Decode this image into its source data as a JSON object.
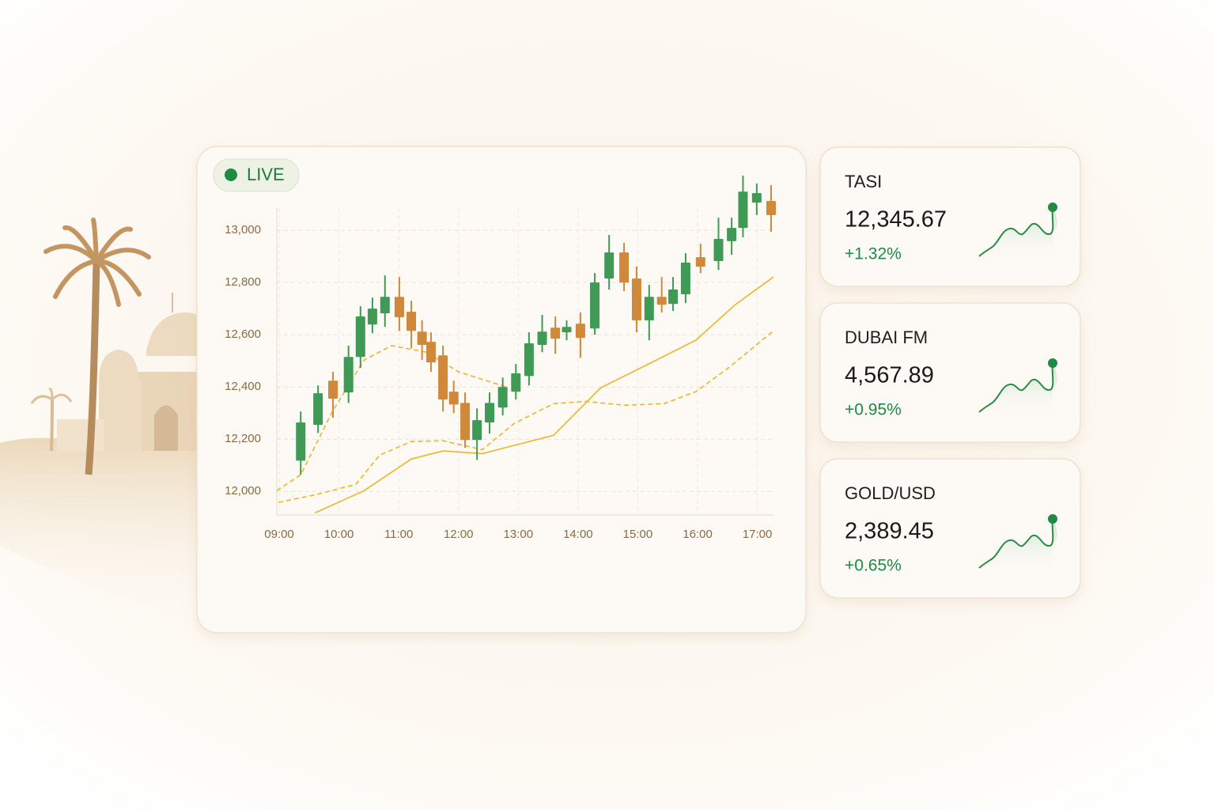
{
  "live_badge": "LIVE",
  "chart_data": {
    "type": "candlestick",
    "xlim": [
      8.96,
      17.27
    ],
    "ylim": [
      11910,
      13085
    ],
    "xticks": [
      {
        "value": 9,
        "label": "09:00"
      },
      {
        "value": 10,
        "label": "10:00"
      },
      {
        "value": 11,
        "label": "11:00"
      },
      {
        "value": 12,
        "label": "12:00"
      },
      {
        "value": 13,
        "label": "13:00"
      },
      {
        "value": 14,
        "label": "14:00"
      },
      {
        "value": 15,
        "label": "15:00"
      },
      {
        "value": 16,
        "label": "16:00"
      },
      {
        "value": 17,
        "label": "17:00"
      }
    ],
    "yticks": [
      {
        "value": 12000,
        "label": "12,000"
      },
      {
        "value": 12200,
        "label": "12,200"
      },
      {
        "value": 12400,
        "label": "12,400"
      },
      {
        "value": 12600,
        "label": "12,600"
      },
      {
        "value": 12800,
        "label": "12,800"
      },
      {
        "value": 13000,
        "label": "13,000"
      }
    ],
    "grid": true,
    "up_color": "#3f9a55",
    "down_color": "#d0883a",
    "candles": [
      {
        "x": 9.36,
        "open": 12118,
        "high": 12306,
        "low": 12064,
        "close": 12264
      },
      {
        "x": 9.65,
        "open": 12255,
        "high": 12406,
        "low": 12224,
        "close": 12376
      },
      {
        "x": 9.9,
        "open": 12424,
        "high": 12458,
        "low": 12282,
        "close": 12355
      },
      {
        "x": 10.16,
        "open": 12379,
        "high": 12558,
        "low": 12339,
        "close": 12515
      },
      {
        "x": 10.36,
        "open": 12515,
        "high": 12709,
        "low": 12473,
        "close": 12670
      },
      {
        "x": 10.56,
        "open": 12639,
        "high": 12742,
        "low": 12606,
        "close": 12700
      },
      {
        "x": 10.77,
        "open": 12682,
        "high": 12827,
        "low": 12630,
        "close": 12745
      },
      {
        "x": 11.01,
        "open": 12745,
        "high": 12821,
        "low": 12615,
        "close": 12667
      },
      {
        "x": 11.21,
        "open": 12688,
        "high": 12730,
        "low": 12548,
        "close": 12615
      },
      {
        "x": 11.39,
        "open": 12612,
        "high": 12655,
        "low": 12503,
        "close": 12561
      },
      {
        "x": 11.54,
        "open": 12573,
        "high": 12609,
        "low": 12458,
        "close": 12494
      },
      {
        "x": 11.74,
        "open": 12521,
        "high": 12558,
        "low": 12306,
        "close": 12352
      },
      {
        "x": 11.92,
        "open": 12382,
        "high": 12424,
        "low": 12300,
        "close": 12333
      },
      {
        "x": 12.11,
        "open": 12339,
        "high": 12379,
        "low": 12167,
        "close": 12197
      },
      {
        "x": 12.31,
        "open": 12197,
        "high": 12318,
        "low": 12121,
        "close": 12273
      },
      {
        "x": 12.52,
        "open": 12264,
        "high": 12379,
        "low": 12221,
        "close": 12339
      },
      {
        "x": 12.74,
        "open": 12321,
        "high": 12436,
        "low": 12291,
        "close": 12400
      },
      {
        "x": 12.96,
        "open": 12382,
        "high": 12488,
        "low": 12352,
        "close": 12452
      },
      {
        "x": 13.18,
        "open": 12442,
        "high": 12609,
        "low": 12406,
        "close": 12567
      },
      {
        "x": 13.4,
        "open": 12561,
        "high": 12676,
        "low": 12533,
        "close": 12612
      },
      {
        "x": 13.62,
        "open": 12627,
        "high": 12670,
        "low": 12527,
        "close": 12585
      },
      {
        "x": 13.81,
        "open": 12609,
        "high": 12655,
        "low": 12579,
        "close": 12630
      },
      {
        "x": 14.04,
        "open": 12642,
        "high": 12685,
        "low": 12512,
        "close": 12588
      },
      {
        "x": 14.28,
        "open": 12624,
        "high": 12836,
        "low": 12600,
        "close": 12800
      },
      {
        "x": 14.52,
        "open": 12815,
        "high": 12982,
        "low": 12773,
        "close": 12915
      },
      {
        "x": 14.77,
        "open": 12915,
        "high": 12952,
        "low": 12767,
        "close": 12800
      },
      {
        "x": 14.98,
        "open": 12815,
        "high": 12861,
        "low": 12609,
        "close": 12655
      },
      {
        "x": 15.19,
        "open": 12655,
        "high": 12791,
        "low": 12579,
        "close": 12745
      },
      {
        "x": 15.4,
        "open": 12745,
        "high": 12821,
        "low": 12685,
        "close": 12715
      },
      {
        "x": 15.59,
        "open": 12718,
        "high": 12821,
        "low": 12691,
        "close": 12773
      },
      {
        "x": 15.8,
        "open": 12755,
        "high": 12912,
        "low": 12721,
        "close": 12876
      },
      {
        "x": 16.05,
        "open": 12897,
        "high": 12948,
        "low": 12836,
        "close": 12861
      },
      {
        "x": 16.35,
        "open": 12882,
        "high": 13048,
        "low": 12848,
        "close": 12967
      },
      {
        "x": 16.57,
        "open": 12958,
        "high": 13048,
        "low": 12906,
        "close": 13009
      },
      {
        "x": 16.76,
        "open": 13009,
        "high": 13209,
        "low": 12973,
        "close": 13148
      },
      {
        "x": 16.99,
        "open": 13106,
        "high": 13179,
        "low": 13058,
        "close": 13142
      },
      {
        "x": 17.23,
        "open": 13112,
        "high": 13173,
        "low": 12994,
        "close": 13058
      }
    ],
    "lines": [
      {
        "color": "#f0b429",
        "style": "solid",
        "x": [
          9.6,
          10.42,
          11.21,
          11.74,
          12.4,
          13.59,
          14.38,
          15.18,
          15.97,
          16.63,
          17.27
        ],
        "values": [
          11918,
          12003,
          12124,
          12155,
          12145,
          12215,
          12397,
          12488,
          12579,
          12715,
          12821
        ]
      },
      {
        "color": "#f0b429",
        "style": "dashed",
        "x": [
          8.96,
          9.36,
          9.89,
          10.42,
          10.88,
          11.47,
          12.0,
          12.8
        ],
        "values": [
          12003,
          12064,
          12306,
          12503,
          12558,
          12533,
          12458,
          12400
        ]
      },
      {
        "color": "#f0b429",
        "style": "dashed",
        "x": [
          8.99,
          9.62,
          10.28,
          10.68,
          11.21,
          11.74,
          12.4,
          12.93,
          13.59,
          14.12,
          14.78,
          15.44,
          15.97,
          16.5,
          17.27
        ],
        "values": [
          11958,
          11988,
          12027,
          12139,
          12191,
          12194,
          12160,
          12260,
          12336,
          12345,
          12330,
          12336,
          12382,
          12470,
          12615
        ]
      }
    ]
  },
  "tickers": [
    {
      "name": "TASI",
      "value": "12,345.67",
      "change": "+1.32%"
    },
    {
      "name": "DUBAI FM",
      "value": "4,567.89",
      "change": "+0.95%"
    },
    {
      "name": "GOLD/USD",
      "value": "2,389.45",
      "change": "+0.65%"
    }
  ]
}
